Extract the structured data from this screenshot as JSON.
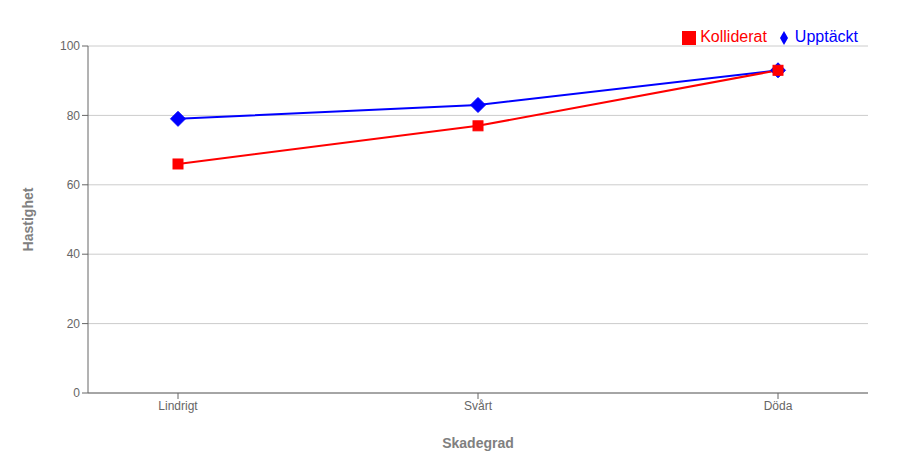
{
  "chart_data": {
    "type": "line",
    "categories": [
      "Lindrigt",
      "Svårt",
      "Döda"
    ],
    "series": [
      {
        "name": "Upptäckt",
        "color": "#0000FF",
        "marker": "diamond",
        "values": [
          79,
          83,
          93
        ]
      },
      {
        "name": "Kolliderat",
        "color": "#FF0000",
        "marker": "square",
        "values": [
          66,
          77,
          93
        ]
      }
    ],
    "x_label": "Skadegrad",
    "y_label": "Hastighet",
    "ylim": [
      0,
      100
    ],
    "yticks": [
      0,
      20,
      40,
      60,
      80,
      100
    ],
    "grid": true,
    "legend": "upper right"
  }
}
